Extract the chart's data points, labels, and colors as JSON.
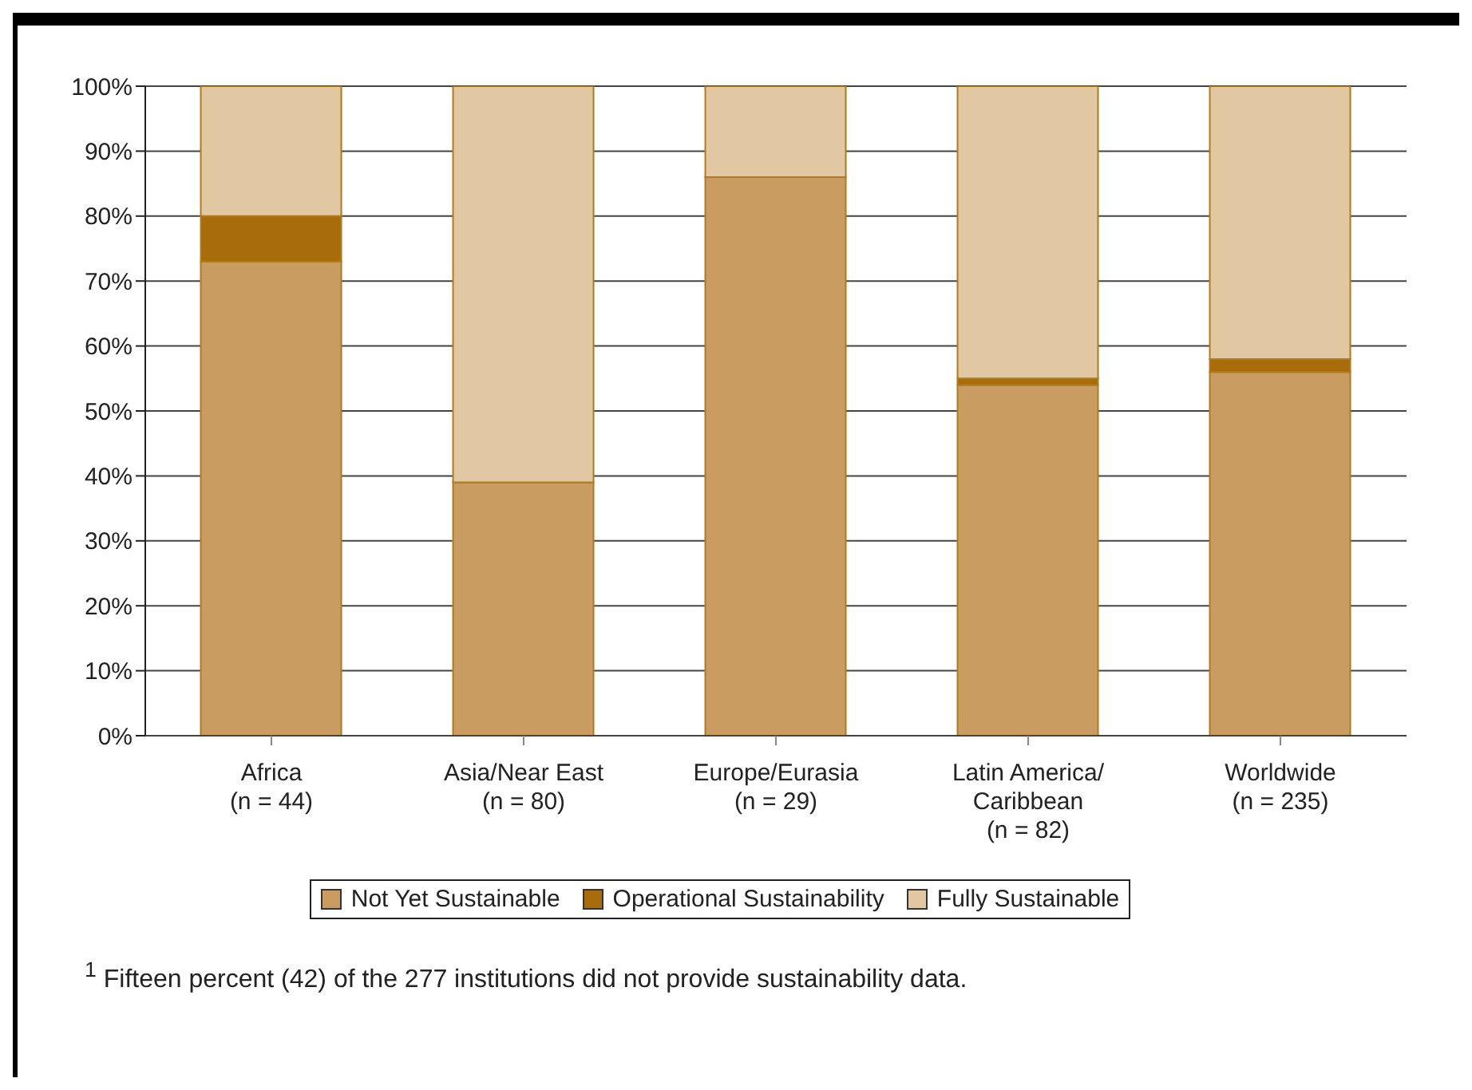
{
  "chart_data": {
    "type": "bar",
    "stacked": true,
    "categories": [
      "Africa\n(n = 44)",
      "Asia/Near East\n(n = 80)",
      "Europe/Eurasia\n(n = 29)",
      "Latin America/\nCaribbean\n(n = 82)",
      "Worldwide\n(n = 235)"
    ],
    "series": [
      {
        "name": "Not Yet Sustainable",
        "color": "#c99d62",
        "values": [
          73,
          39,
          86,
          54,
          56
        ]
      },
      {
        "name": "Operational Sustainability",
        "color": "#a86c0a",
        "values": [
          7,
          0,
          0,
          1,
          2
        ]
      },
      {
        "name": "Fully Sustainable",
        "color": "#e1c8a3",
        "values": [
          20,
          61,
          14,
          45,
          42
        ]
      }
    ],
    "ylim": [
      0,
      100
    ],
    "yticks": [
      {
        "value": 0,
        "label": "0%"
      },
      {
        "value": 10,
        "label": "10%"
      },
      {
        "value": 20,
        "label": "20%"
      },
      {
        "value": 30,
        "label": "30%"
      },
      {
        "value": 40,
        "label": "40%"
      },
      {
        "value": 50,
        "label": "50%"
      },
      {
        "value": 60,
        "label": "60%"
      },
      {
        "value": 70,
        "label": "70%"
      },
      {
        "value": 80,
        "label": "80%"
      },
      {
        "value": 90,
        "label": "90%"
      },
      {
        "value": 100,
        "label": "100%"
      }
    ],
    "grid": "y",
    "legend": "bottom",
    "annotations": [
      "$^{1}$ Fifteen percent (42) of the 277 institutions did not provide sustainability data."
    ]
  }
}
